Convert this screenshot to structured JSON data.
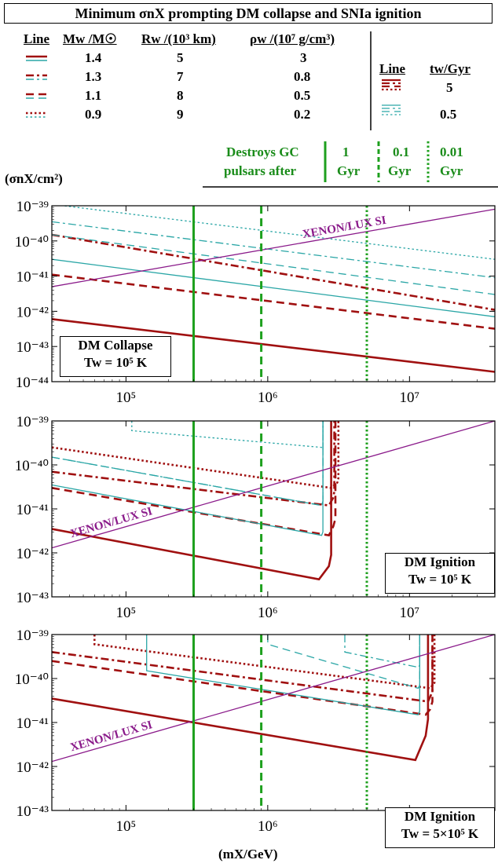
{
  "title": "Minimum σnX prompting DM collapse and SNIa ignition",
  "wd_table": {
    "headers": {
      "line": "Line",
      "mass": "Mw /M☉",
      "radius": "Rw /(10³ km)",
      "density": "ρw /(10⁷ g/cm³)"
    },
    "rows": [
      {
        "style": "solid",
        "mass": "1.4",
        "radius": "5",
        "density": "3"
      },
      {
        "style": "dash-dot",
        "mass": "1.3",
        "radius": "7",
        "density": "0.8"
      },
      {
        "style": "dashed",
        "mass": "1.1",
        "radius": "8",
        "density": "0.5"
      },
      {
        "style": "dotted",
        "mass": "0.9",
        "radius": "9",
        "density": "0.2"
      }
    ]
  },
  "age_table": {
    "headers": {
      "line": "Line",
      "age": "tw/Gyr"
    },
    "rows": [
      {
        "color": "#a01010",
        "age": "5"
      },
      {
        "color": "#2aa6a6",
        "age": "0.5"
      }
    ]
  },
  "pulsar_legend": {
    "label_line1": "Destroys GC",
    "label_line2": "pulsars after",
    "items": [
      {
        "top": "1",
        "bottom": "Gyr",
        "style": "solid"
      },
      {
        "top": "0.1",
        "bottom": "Gyr",
        "style": "dashed"
      },
      {
        "top": "0.01",
        "bottom": "Gyr",
        "style": "dotted"
      }
    ]
  },
  "ylabel": "(σnX/cm²)",
  "xlabel": "(mX/GeV)",
  "colors": {
    "red": "#a01010",
    "teal": "#2aa6a6",
    "green": "#1ea01e",
    "purple": "#8a1a8a"
  },
  "chart_data": [
    {
      "type": "line",
      "panel_label_1": "DM Collapse",
      "panel_label_2": "Tw = 10⁵ K",
      "x_log": true,
      "y_log": true,
      "xlim": [
        30000,
        40000000
      ],
      "ylim": [
        1e-44,
        1e-39
      ],
      "xticks": [
        "10⁵",
        "10⁶",
        "10⁷"
      ],
      "yticks": [
        "10⁻⁴⁴",
        "10⁻⁴³",
        "10⁻⁴²",
        "10⁻⁴¹",
        "10⁻⁴⁰",
        "10⁻³⁹"
      ],
      "xenon_label": "XENON/LUX SI",
      "xenon": {
        "x": [
          30000,
          40000000
        ],
        "y": [
          5e-42,
          8e-40
        ]
      },
      "vlines": [
        {
          "x": 300000,
          "style": "solid"
        },
        {
          "x": 900000,
          "style": "dashed"
        },
        {
          "x": 5000000,
          "style": "dotted"
        }
      ],
      "series": [
        {
          "color": "red",
          "style": "solid",
          "x": [
            30000,
            40000000
          ],
          "y": [
            6e-43,
            1.9e-44
          ]
        },
        {
          "color": "red",
          "style": "dashed",
          "x": [
            30000,
            40000000
          ],
          "y": [
            1.1e-41,
            3.2e-43
          ]
        },
        {
          "color": "red",
          "style": "dash-dot",
          "x": [
            30000,
            40000000
          ],
          "y": [
            1.5e-40,
            1.1e-42
          ]
        },
        {
          "color": "teal",
          "style": "solid",
          "x": [
            30000,
            40000000
          ],
          "y": [
            3e-41,
            7e-43
          ]
        },
        {
          "color": "teal",
          "style": "dashed",
          "x": [
            30000,
            40000000
          ],
          "y": [
            1.5e-40,
            3e-42
          ]
        },
        {
          "color": "teal",
          "style": "dash-dot",
          "x": [
            30000,
            40000000
          ],
          "y": [
            3.5e-40,
            9e-42
          ]
        },
        {
          "color": "teal",
          "style": "dotted",
          "x": [
            30000,
            40000000
          ],
          "y": [
            1.1e-39,
            3e-41
          ]
        }
      ]
    },
    {
      "type": "line",
      "panel_label_1": "DM Ignition",
      "panel_label_2": "Tw = 10⁵ K",
      "x_log": true,
      "y_log": true,
      "xlim": [
        30000,
        40000000
      ],
      "ylim": [
        1e-43,
        1e-39
      ],
      "xticks": [
        "10⁵",
        "10⁶",
        "10⁷"
      ],
      "yticks": [
        "10⁻⁴³",
        "10⁻⁴²",
        "10⁻⁴¹",
        "10⁻⁴⁰",
        "10⁻³⁹"
      ],
      "xenon_label": "XENON/LUX SI",
      "xenon": {
        "x": [
          30000,
          40000000
        ],
        "y": [
          1.3e-42,
          1e-39
        ]
      },
      "vlines": [
        {
          "x": 300000,
          "style": "solid"
        },
        {
          "x": 900000,
          "style": "dashed"
        },
        {
          "x": 5000000,
          "style": "dotted"
        }
      ],
      "series": [
        {
          "color": "red",
          "style": "solid",
          "x": [
            30000,
            2300000,
            2700000,
            2800000,
            2800000
          ],
          "y": [
            3.5e-42,
            2.5e-43,
            5e-43,
            9e-43,
            1e-39
          ]
        },
        {
          "color": "red",
          "style": "dashed",
          "x": [
            30000,
            2700000,
            2900000,
            3000000,
            3000000
          ],
          "y": [
            3e-41,
            2.5e-42,
            4e-42,
            6e-42,
            1e-39
          ]
        },
        {
          "color": "red",
          "style": "dash-dot",
          "x": [
            30000,
            2700000,
            2900000,
            2950000,
            2950000
          ],
          "y": [
            7e-41,
            1.2e-41,
            1.8e-41,
            2.5e-41,
            1e-39
          ]
        },
        {
          "color": "red",
          "style": "dotted",
          "x": [
            30000,
            2800000,
            3100000,
            3150000,
            3150000
          ],
          "y": [
            2.5e-40,
            3e-41,
            4e-41,
            5e-41,
            1e-39
          ]
        },
        {
          "color": "teal",
          "style": "solid",
          "x": [
            30000,
            2400000,
            2450000,
            2450000
          ],
          "y": [
            3.5e-41,
            2.5e-42,
            3e-42,
            1e-39
          ]
        },
        {
          "color": "teal",
          "style": "dashed",
          "x": [
            30000,
            2400000,
            2450000,
            2450000
          ],
          "y": [
            1.5e-40,
            1.2e-41,
            1.5e-41,
            1e-39
          ]
        },
        {
          "color": "teal",
          "style": "dash-dot",
          "x": [
            30000,
            2400000,
            2450000,
            2450000
          ],
          "y": [
            1.5e-40,
            1.2e-41,
            1.5e-41,
            1e-39
          ]
        },
        {
          "color": "teal",
          "style": "dotted",
          "x": [
            110000,
            110000,
            2400000,
            2450000,
            2450000
          ],
          "y": [
            1e-39,
            6e-40,
            2.5e-40,
            2.8e-40,
            1e-39
          ]
        }
      ]
    },
    {
      "type": "line",
      "panel_label_1": "DM Ignition",
      "panel_label_2": "Tw = 5×10⁵ K",
      "x_log": true,
      "y_log": true,
      "xlim": [
        30000,
        40000000
      ],
      "ylim": [
        1e-43,
        1e-39
      ],
      "xticks": [
        "10⁵",
        "10⁶",
        "10⁷"
      ],
      "yticks": [
        "10⁻⁴³",
        "10⁻⁴²",
        "10⁻⁴¹",
        "10⁻⁴⁰",
        "10⁻³⁹"
      ],
      "xenon_label": "XENON/LUX SI",
      "xenon": {
        "x": [
          30000,
          40000000
        ],
        "y": [
          1.3e-42,
          1e-39
        ]
      },
      "vlines": [
        {
          "x": 300000,
          "style": "solid"
        },
        {
          "x": 900000,
          "style": "dashed"
        },
        {
          "x": 5000000,
          "style": "dotted"
        }
      ],
      "series": [
        {
          "color": "red",
          "style": "solid",
          "x": [
            30000,
            11000000,
            13000000,
            13500000,
            13500000
          ],
          "y": [
            3.5e-41,
            1.4e-42,
            5e-42,
            1.2e-41,
            1e-39
          ]
        },
        {
          "color": "red",
          "style": "dashed",
          "x": [
            30000,
            13000000,
            14000000,
            14500000,
            14500000
          ],
          "y": [
            2.5e-40,
            1.5e-41,
            2e-41,
            3e-41,
            1e-39
          ]
        },
        {
          "color": "red",
          "style": "dash-dot",
          "x": [
            30000,
            13500000,
            14500000,
            14500000
          ],
          "y": [
            4e-40,
            3e-41,
            5e-41,
            1e-39
          ]
        },
        {
          "color": "red",
          "style": "dotted",
          "x": [
            60000,
            60000,
            14000000,
            15000000,
            15000000
          ],
          "y": [
            1e-39,
            6e-40,
            6e-41,
            8e-41,
            1e-39
          ]
        },
        {
          "color": "teal",
          "style": "solid",
          "x": [
            140000,
            140000,
            11500000,
            11800000,
            11800000
          ],
          "y": [
            1e-39,
            1.5e-40,
            1.5e-41,
            1.8e-41,
            1e-39
          ]
        },
        {
          "color": "teal",
          "style": "dashed",
          "x": [
            1000000,
            1000000,
            11500000,
            11800000,
            11800000
          ],
          "y": [
            1e-39,
            6e-40,
            6e-41,
            7e-41,
            1e-39
          ]
        },
        {
          "color": "teal",
          "style": "dash-dot",
          "x": [
            3500000,
            3500000,
            11500000,
            11800000,
            11800000
          ],
          "y": [
            1e-39,
            4e-40,
            1.8e-40,
            2e-40,
            1e-39
          ]
        }
      ]
    }
  ]
}
